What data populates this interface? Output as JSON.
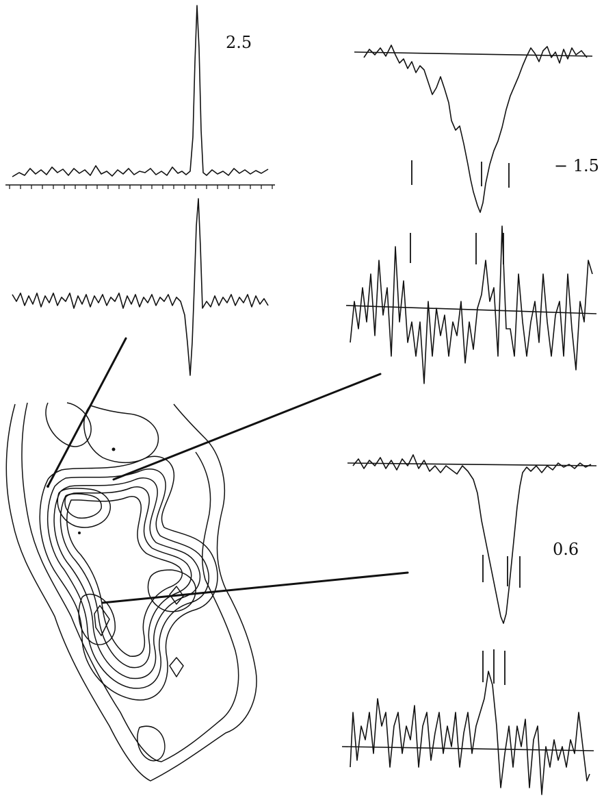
{
  "figure": {
    "labels": {
      "top_left_panel": "2.5",
      "top_right_panel": "− 1.5",
      "bottom_right_panel": "0.6"
    }
  },
  "colors": {
    "ink": "#111111",
    "background": "#ffffff"
  }
}
